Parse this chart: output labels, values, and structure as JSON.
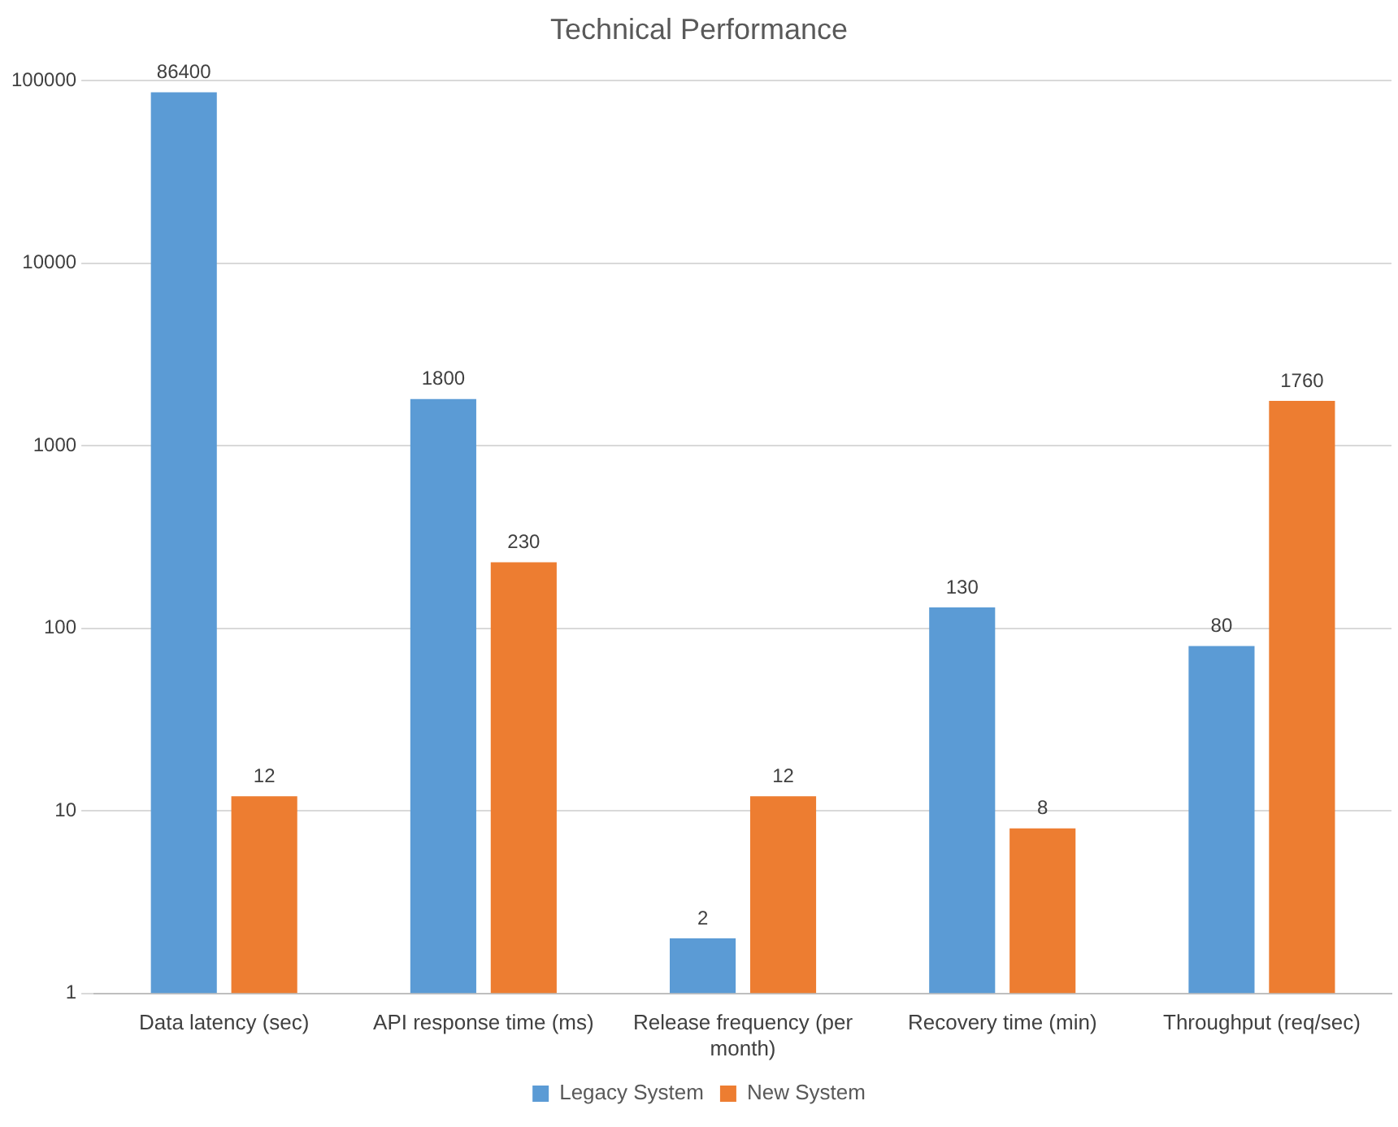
{
  "chart_data": {
    "type": "bar",
    "title": "Technical Performance",
    "categories": [
      "Data latency (sec)",
      "API response time (ms)",
      "Release frequency (per month)",
      "Recovery time (min)",
      "Throughput (req/sec)"
    ],
    "series": [
      {
        "name": "Legacy System",
        "color": "#5b9bd5",
        "values": [
          86400,
          1800,
          2,
          130,
          80
        ]
      },
      {
        "name": "New System",
        "color": "#ed7d31",
        "values": [
          12,
          230,
          12,
          8,
          1760
        ]
      }
    ],
    "log": "y",
    "ylim": [
      1,
      100000
    ],
    "yticks": [
      1,
      10,
      100,
      1000,
      10000,
      100000
    ],
    "grid": "y",
    "legend": "bottom",
    "data_labels": true
  }
}
